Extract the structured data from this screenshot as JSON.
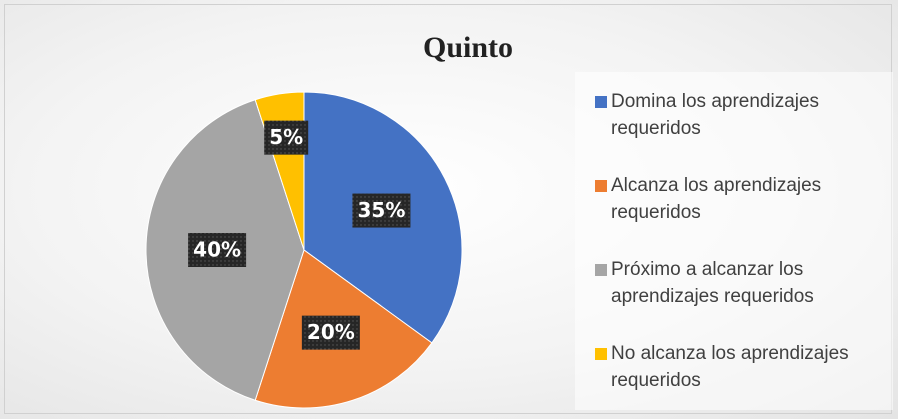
{
  "chart_data": {
    "type": "pie",
    "title": "Quinto",
    "categories": [
      "Domina los aprendizajes requeridos",
      "Alcanza los aprendizajes requeridos",
      "Próximo a alcanzar los aprendizajes requeridos",
      "No alcanza los aprendizajes requeridos"
    ],
    "values": [
      35,
      20,
      40,
      5
    ],
    "value_labels": [
      "35%",
      "20%",
      "40%",
      "5%"
    ],
    "colors": [
      "#4472c4",
      "#ed7d31",
      "#a5a5a5",
      "#ffc000"
    ],
    "legend": "right"
  }
}
